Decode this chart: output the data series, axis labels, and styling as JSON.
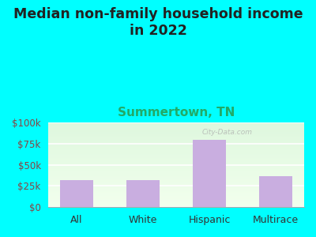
{
  "title": "Median non-family household income\nin 2022",
  "subtitle": "Summertown, TN",
  "categories": [
    "All",
    "White",
    "Hispanic",
    "Multirace"
  ],
  "values": [
    32000,
    32000,
    80000,
    37000
  ],
  "bar_color": "#c9aee0",
  "title_fontsize": 12.5,
  "subtitle_fontsize": 11,
  "subtitle_color": "#22aa66",
  "title_color": "#222222",
  "background_outer": "#00ffff",
  "ylim": [
    0,
    100000
  ],
  "yticks": [
    0,
    25000,
    50000,
    75000,
    100000
  ],
  "ytick_labels": [
    "$0",
    "$25k",
    "$50k",
    "$75k",
    "$100k"
  ],
  "tick_color": "#884444",
  "watermark": "City-Data.com"
}
